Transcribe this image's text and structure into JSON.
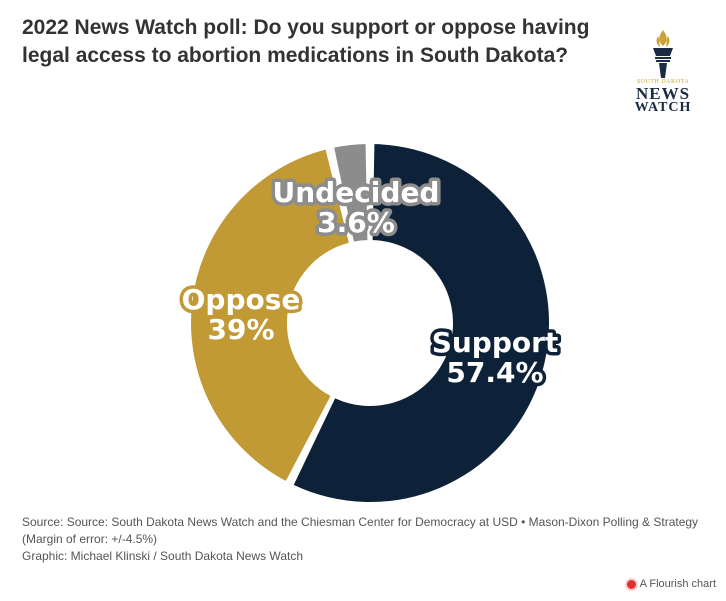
{
  "title": "2022 News Watch poll: Do you support or oppose having legal access to abortion medications in South Dakota?",
  "logo": {
    "line1": "SOUTH DAKOTA",
    "line2": "NEWS",
    "line3": "WATCH",
    "icon": "torch-icon",
    "color": "#1a2b45",
    "accent": "#c9a23a"
  },
  "chart_data": {
    "type": "pie",
    "variant": "donut",
    "series": [
      {
        "name": "Support",
        "value": 57.4,
        "label": "57.4%",
        "color": "#0d2238"
      },
      {
        "name": "Oppose",
        "value": 39,
        "label": "39%",
        "color": "#c29a35"
      },
      {
        "name": "Undecided",
        "value": 3.6,
        "label": "3.6%",
        "color": "#8c8c8c"
      }
    ]
  },
  "footer": {
    "source": "Source: Source: South Dakota News Watch and the Chiesman Center for Democracy at USD • Mason-Dixon Polling & Strategy (Margin of error: +/-4.5%)",
    "graphic": "Graphic: Michael Klinski / South Dakota News Watch"
  },
  "branding": {
    "flourish_label": "A Flourish chart",
    "icon": "flourish-icon"
  }
}
